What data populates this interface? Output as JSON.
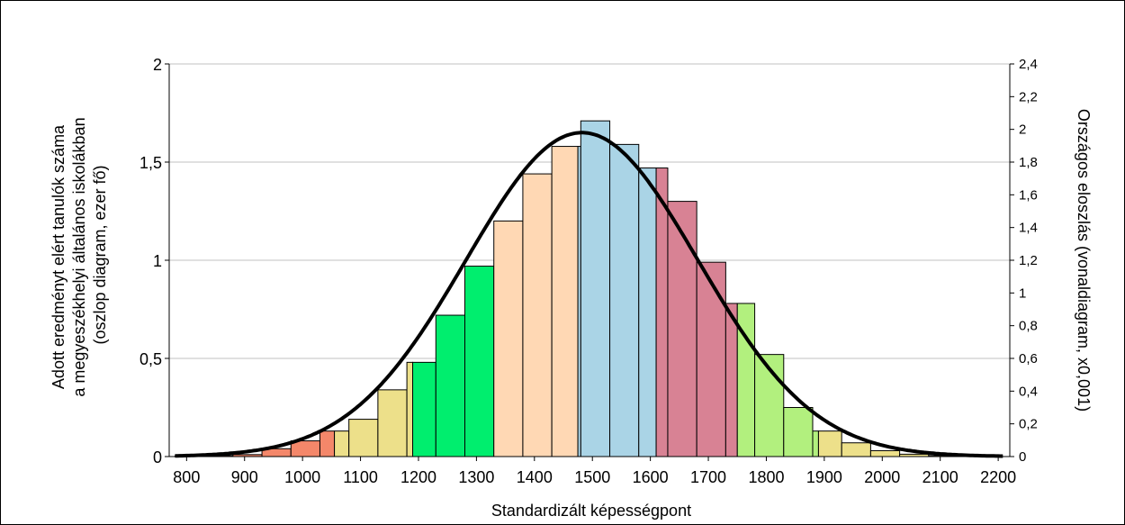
{
  "chart_data": {
    "type": "bar",
    "x": [
      800,
      830,
      860,
      890,
      920,
      950,
      980,
      1010,
      1040,
      1070,
      1100,
      1130,
      1160,
      1190,
      1220,
      1250,
      1280,
      1310,
      1340,
      1370,
      1400,
      1430,
      1460,
      1490,
      1520,
      1550,
      1580,
      1610,
      1640,
      1670,
      1700,
      1730,
      1760,
      1790,
      1820,
      1850,
      1880,
      1910,
      1940,
      1970,
      2000,
      2030,
      2060,
      2090,
      2120,
      2150,
      2180
    ],
    "series": [
      {
        "values": [
          0.003,
          0.005,
          0.008,
          0.012,
          0.02,
          0.04,
          0.06,
          0.08,
          0.13,
          0.135,
          0.19,
          0.28,
          0.34,
          0.48,
          0.48,
          0.72,
          0.72,
          0.97,
          1.2,
          1.2,
          1.44,
          1.58,
          1.58,
          1.71,
          1.71,
          1.59,
          1.47,
          1.47,
          1.3,
          1.3,
          0.99,
          0.78,
          0.78,
          0.52,
          0.52,
          0.25,
          0.13,
          0.13,
          0.07,
          0.04,
          0.03,
          0.02,
          0.012,
          0.008,
          0.005,
          0.003,
          0.002
        ],
        "colors": [
          "#f4876a",
          "#f4876a",
          "#f4876a",
          "#f4876a",
          "#f4876a",
          "#f4876a",
          "#f4876a",
          "#f4876a",
          "#f4876a",
          "#ede08a",
          "#ede08a",
          "#ede08a",
          "#ede08a",
          "#00ee6e",
          "#00ee6e",
          "#00ee6e",
          "#00ee6e",
          "#00ee6e",
          "#ffd8b4",
          "#ffd8b4",
          "#ffd8b4",
          "#ffd8b4",
          "#ffd8b4",
          "#aad4e6",
          "#aad4e6",
          "#aad4e6",
          "#aad4e6",
          "#aad4e6",
          "#d88294",
          "#d88294",
          "#d88294",
          "#d88294",
          "#b2f07e",
          "#b2f07e",
          "#b2f07e",
          "#b2f07e",
          "#b2f07e",
          "#ede08a",
          "#ede08a",
          "#ede08a",
          "#ede08a",
          "#ede08a",
          "#ede08a",
          "#ede08a",
          "#ede08a",
          "#ede08a",
          "#ede08a"
        ]
      }
    ],
    "bars": [
      {
        "x0": 780,
        "x1": 830,
        "value": 0.003,
        "color": "#f4876a"
      },
      {
        "x0": 830,
        "x1": 880,
        "value": 0.005,
        "color": "#f4876a"
      },
      {
        "x0": 880,
        "x1": 930,
        "value": 0.01,
        "color": "#f4876a"
      },
      {
        "x0": 930,
        "x1": 980,
        "value": 0.04,
        "color": "#f4876a"
      },
      {
        "x0": 980,
        "x1": 1030,
        "value": 0.08,
        "color": "#f4876a"
      },
      {
        "x0": 1030,
        "x1": 1055,
        "value": 0.13,
        "color": "#f4876a"
      },
      {
        "x0": 1055,
        "x1": 1080,
        "value": 0.13,
        "color": "#ede08a"
      },
      {
        "x0": 1080,
        "x1": 1130,
        "value": 0.19,
        "color": "#ede08a"
      },
      {
        "x0": 1130,
        "x1": 1180,
        "value": 0.34,
        "color": "#ede08a"
      },
      {
        "x0": 1180,
        "x1": 1190,
        "value": 0.48,
        "color": "#ede08a"
      },
      {
        "x0": 1190,
        "x1": 1230,
        "value": 0.48,
        "color": "#00ee6e"
      },
      {
        "x0": 1230,
        "x1": 1280,
        "value": 0.72,
        "color": "#00ee6e"
      },
      {
        "x0": 1280,
        "x1": 1330,
        "value": 0.97,
        "color": "#00ee6e"
      },
      {
        "x0": 1330,
        "x1": 1380,
        "value": 1.2,
        "color": "#ffd8b4"
      },
      {
        "x0": 1380,
        "x1": 1430,
        "value": 1.44,
        "color": "#ffd8b4"
      },
      {
        "x0": 1430,
        "x1": 1475,
        "value": 1.58,
        "color": "#ffd8b4"
      },
      {
        "x0": 1475,
        "x1": 1480,
        "value": 1.58,
        "color": "#aad4e6"
      },
      {
        "x0": 1480,
        "x1": 1530,
        "value": 1.71,
        "color": "#aad4e6"
      },
      {
        "x0": 1530,
        "x1": 1580,
        "value": 1.59,
        "color": "#aad4e6"
      },
      {
        "x0": 1580,
        "x1": 1610,
        "value": 1.47,
        "color": "#aad4e6"
      },
      {
        "x0": 1610,
        "x1": 1630,
        "value": 1.47,
        "color": "#d88294"
      },
      {
        "x0": 1630,
        "x1": 1680,
        "value": 1.3,
        "color": "#d88294"
      },
      {
        "x0": 1680,
        "x1": 1730,
        "value": 0.99,
        "color": "#d88294"
      },
      {
        "x0": 1730,
        "x1": 1750,
        "value": 0.78,
        "color": "#d88294"
      },
      {
        "x0": 1750,
        "x1": 1780,
        "value": 0.78,
        "color": "#b2f07e"
      },
      {
        "x0": 1780,
        "x1": 1830,
        "value": 0.52,
        "color": "#b2f07e"
      },
      {
        "x0": 1830,
        "x1": 1880,
        "value": 0.25,
        "color": "#b2f07e"
      },
      {
        "x0": 1880,
        "x1": 1890,
        "value": 0.13,
        "color": "#b2f07e"
      },
      {
        "x0": 1890,
        "x1": 1930,
        "value": 0.13,
        "color": "#ede08a"
      },
      {
        "x0": 1930,
        "x1": 1980,
        "value": 0.07,
        "color": "#ede08a"
      },
      {
        "x0": 1980,
        "x1": 2030,
        "value": 0.03,
        "color": "#ede08a"
      },
      {
        "x0": 2030,
        "x1": 2080,
        "value": 0.012,
        "color": "#ede08a"
      },
      {
        "x0": 2080,
        "x1": 2130,
        "value": 0.005,
        "color": "#ede08a"
      },
      {
        "x0": 2130,
        "x1": 2180,
        "value": 0.002,
        "color": "#ede08a"
      }
    ],
    "curve": {
      "mean": 1482,
      "sd": 200,
      "peak_right_axis": 1.98
    },
    "xlim": [
      770,
      2220
    ],
    "ylim": [
      0,
      2
    ],
    "y2lim": [
      0,
      2.4
    ],
    "xticks": [
      "800",
      "900",
      "1000",
      "1100",
      "1200",
      "1300",
      "1400",
      "1500",
      "1600",
      "1700",
      "1800",
      "1900",
      "2000",
      "2100",
      "2200"
    ],
    "yticks": [
      "0",
      "0,5",
      "1",
      "1,5",
      "2"
    ],
    "y2ticks": [
      "0",
      "0,2",
      "0,4",
      "0,6",
      "0,8",
      "1",
      "1,2",
      "1,4",
      "1,6",
      "1,8",
      "2",
      "2,2",
      "2,4"
    ],
    "xlabel": "Standardizált képességpont",
    "ylabel_lines": [
      "Adott eredményt elért tanulók száma",
      "a megyeszékhelyi általános iskolákban",
      "(oszlop diagram, ezer fő)"
    ],
    "y2label": "Országos eloszlás (vonaldiagram, x0,001)",
    "grid": true
  }
}
